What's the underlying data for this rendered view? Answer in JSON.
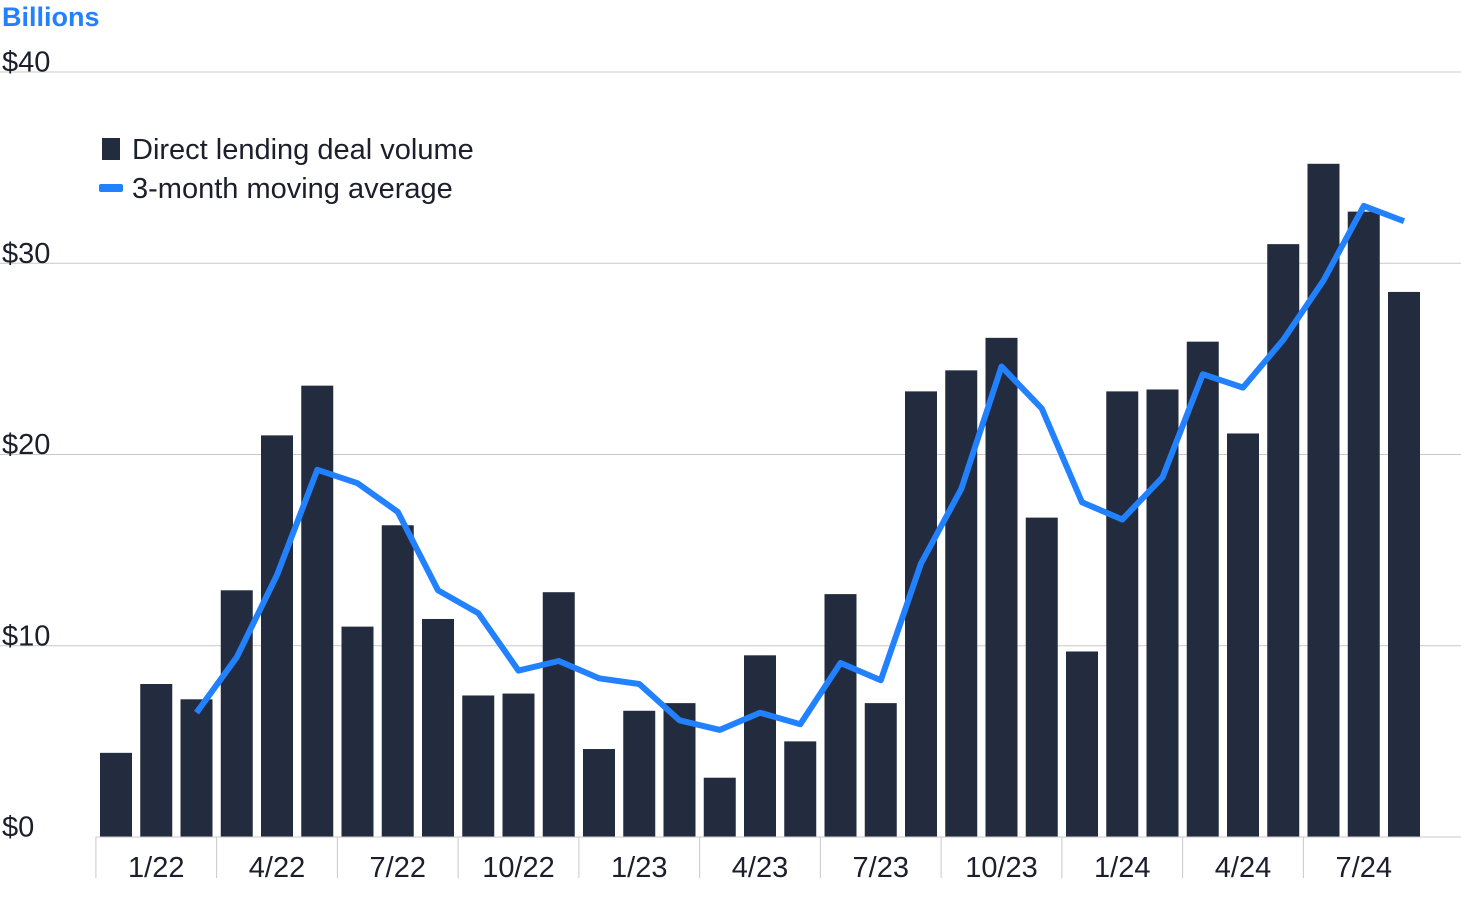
{
  "chart_data": {
    "type": "bar",
    "unit_label": "Billions",
    "y_axis": {
      "min": 0,
      "max": 40,
      "ticks": [
        0,
        10,
        20,
        30,
        40
      ],
      "tick_labels": [
        "$0",
        "$10",
        "$20",
        "$30",
        "$40"
      ],
      "gridlines": true
    },
    "x_tick_labels": [
      "1/22",
      "4/22",
      "7/22",
      "10/22",
      "1/23",
      "4/23",
      "7/23",
      "10/23",
      "1/24",
      "4/24",
      "7/24"
    ],
    "categories": [
      "1/22",
      "2/22",
      "3/22",
      "4/22",
      "5/22",
      "6/22",
      "7/22",
      "8/22",
      "9/22",
      "10/22",
      "11/22",
      "12/22",
      "1/23",
      "2/23",
      "3/23",
      "4/23",
      "5/23",
      "6/23",
      "7/23",
      "8/23",
      "9/23",
      "10/23",
      "11/23",
      "12/23",
      "1/24",
      "2/24",
      "3/24",
      "4/24",
      "5/24",
      "6/24",
      "7/24",
      "8/24",
      "9/24"
    ],
    "legend_position": "top-left",
    "series": [
      {
        "name": "Direct lending deal volume",
        "type": "bar",
        "color": "#232b3e",
        "values": [
          4.4,
          8.0,
          7.2,
          12.9,
          21.0,
          23.6,
          11.0,
          16.3,
          11.4,
          7.4,
          7.5,
          12.8,
          4.6,
          6.6,
          7.0,
          3.1,
          9.5,
          5.0,
          12.7,
          7.0,
          23.3,
          24.4,
          26.1,
          16.7,
          9.7,
          23.3,
          23.4,
          25.9,
          21.1,
          31.0,
          35.2,
          32.7,
          28.5
        ]
      },
      {
        "name": "3-month moving average",
        "type": "line",
        "color": "#2181ff",
        "values": [
          null,
          null,
          6.5,
          9.4,
          13.7,
          19.2,
          18.5,
          17.0,
          12.9,
          11.7,
          8.7,
          9.2,
          8.3,
          8.0,
          6.1,
          5.6,
          6.5,
          5.9,
          9.1,
          8.2,
          14.3,
          18.2,
          24.6,
          22.4,
          17.5,
          16.6,
          18.8,
          24.2,
          23.5,
          26.0,
          29.1,
          33.0,
          32.2
        ]
      }
    ]
  },
  "colors": {
    "bar": "#232b3e",
    "line": "#2181ff",
    "unit_label": "#2181ff",
    "grid": "#c9c9c9",
    "text": "#1c1f2b"
  }
}
